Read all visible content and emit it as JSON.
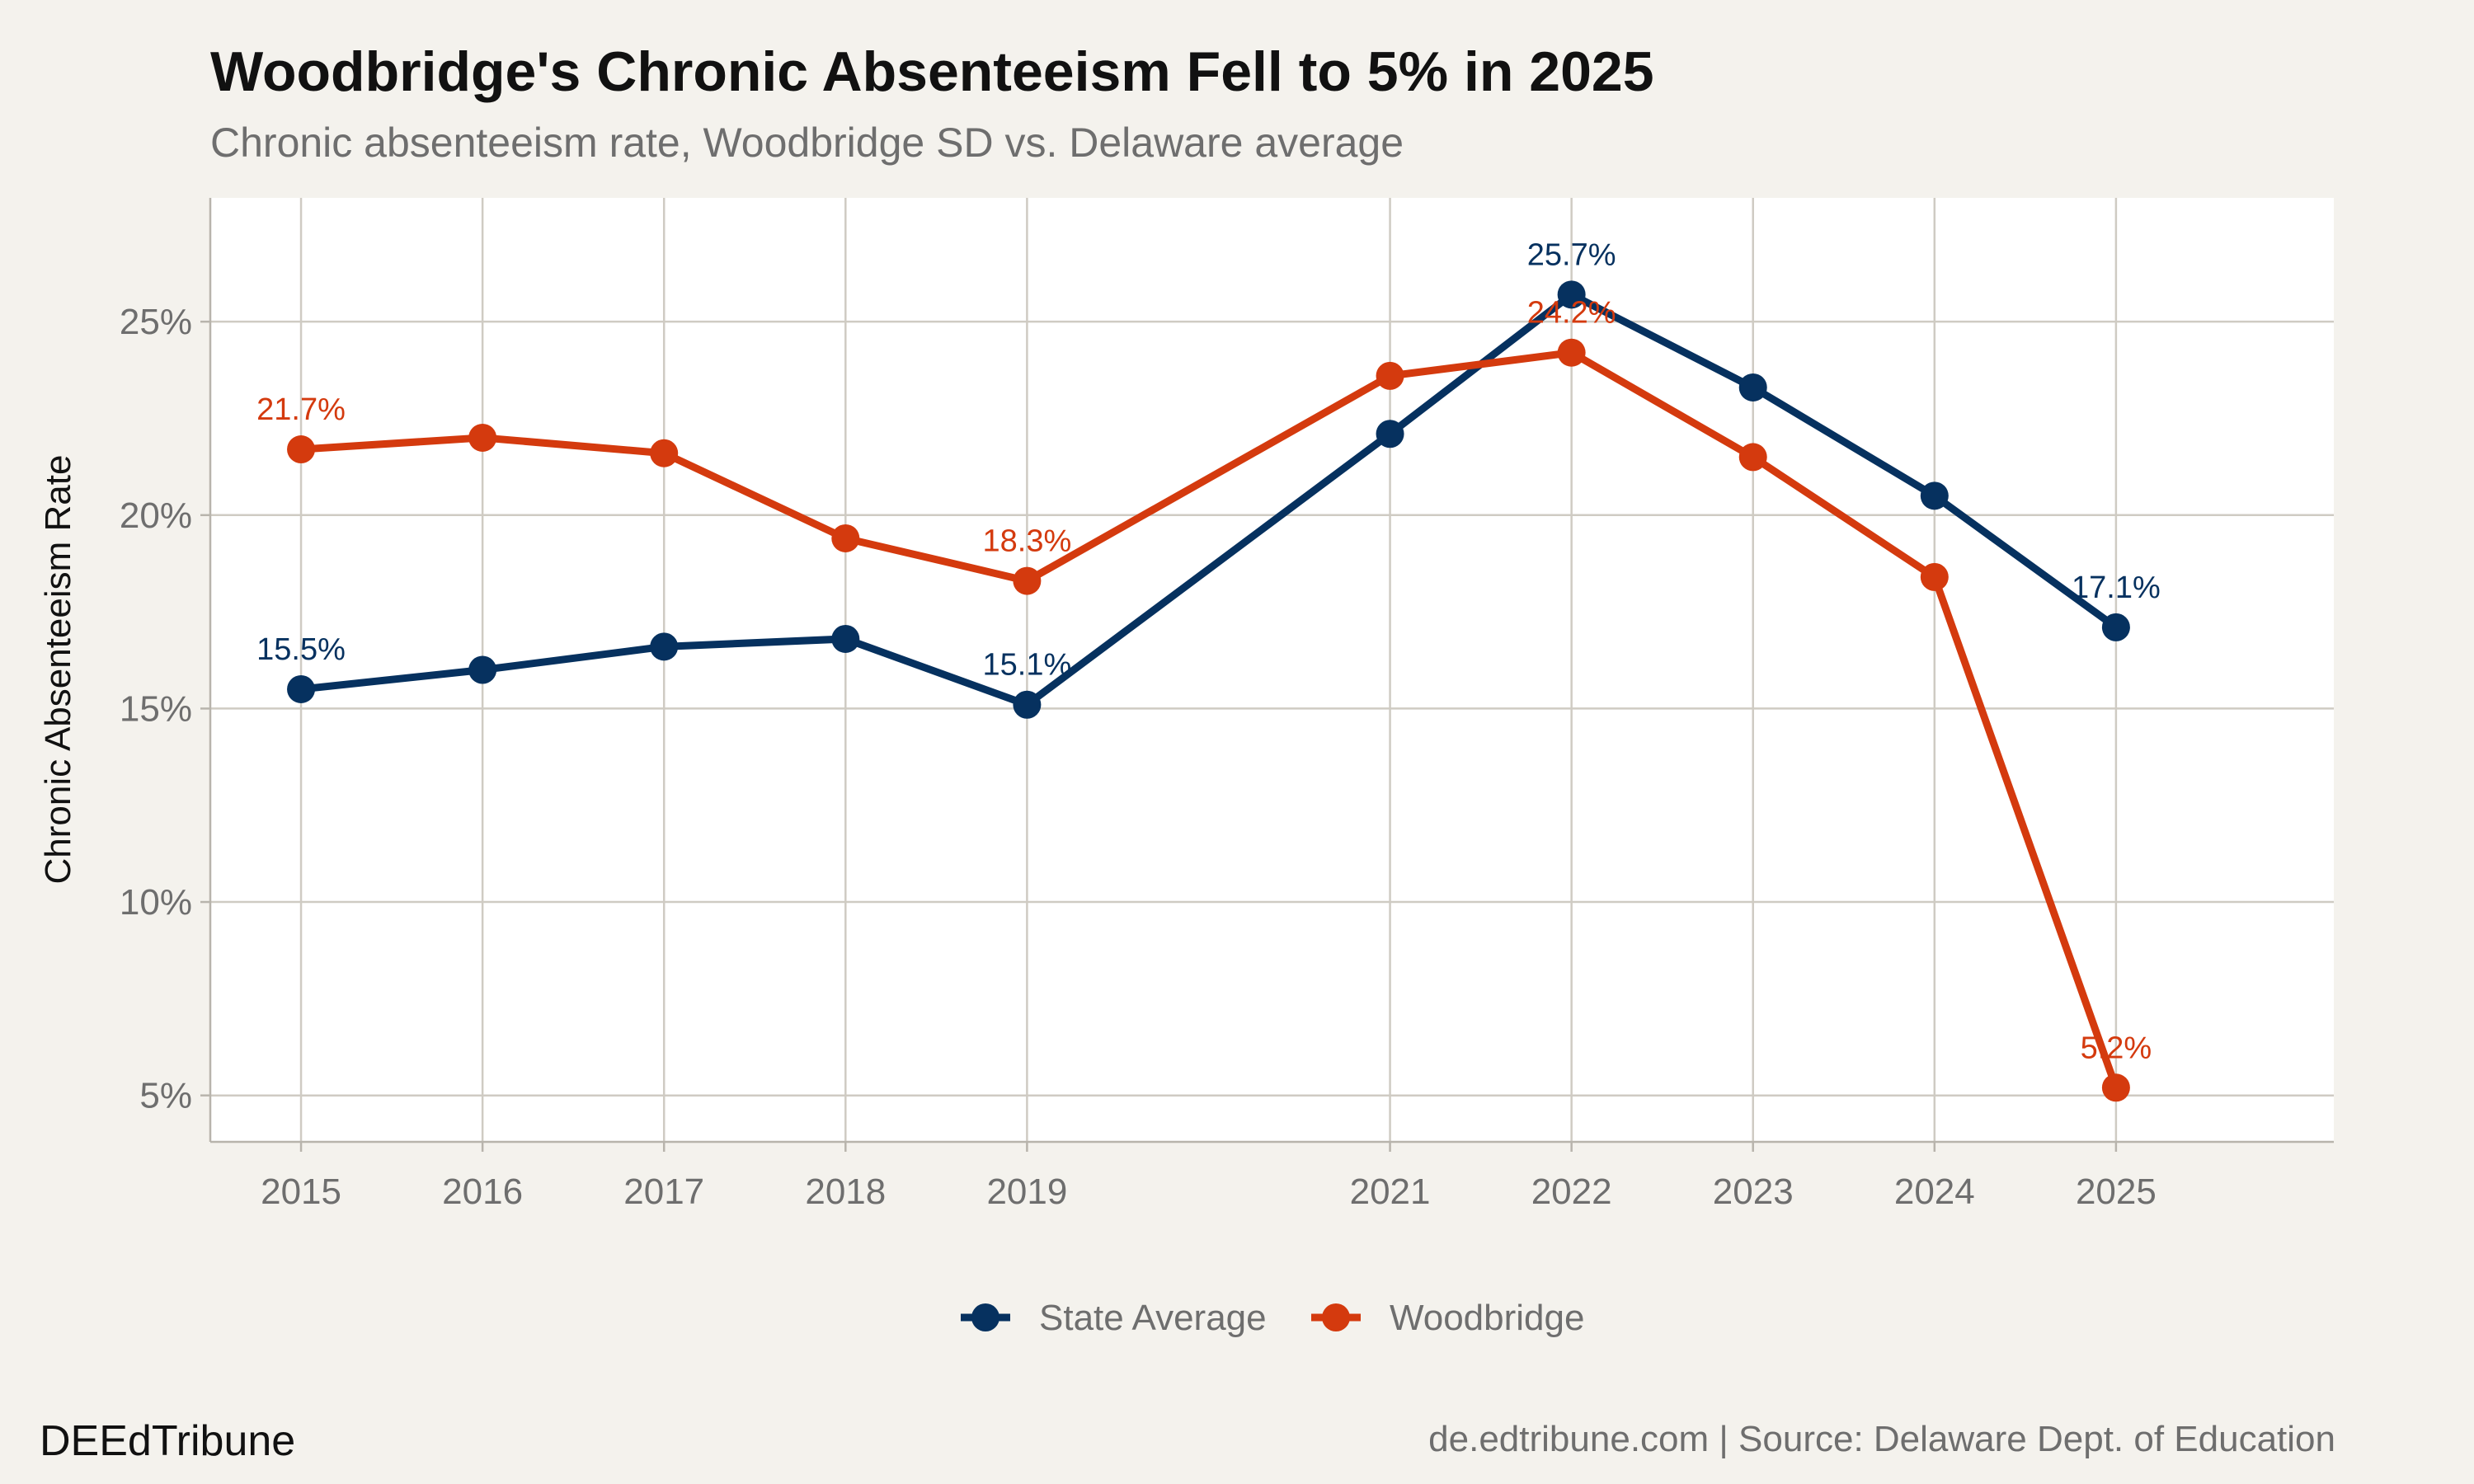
{
  "chart_data": {
    "type": "line",
    "title": "Woodbridge's Chronic Absenteeism Fell to 5% in 2025",
    "subtitle": "Chronic absenteeism rate, Woodbridge SD vs. Delaware average",
    "xlabel": "",
    "ylabel": "Chronic Absenteeism Rate",
    "x": [
      2015,
      2016,
      2017,
      2018,
      2019,
      2021,
      2022,
      2023,
      2024,
      2025
    ],
    "x_tick_labels": [
      "2015",
      "2016",
      "2017",
      "2018",
      "2019",
      "2021",
      "2022",
      "2023",
      "2024",
      "2025"
    ],
    "xlim": [
      2014.5,
      2026.2
    ],
    "ylim": [
      3.8,
      28.2
    ],
    "y_ticks": [
      5,
      10,
      15,
      20,
      25
    ],
    "y_tick_labels": [
      "5%",
      "10%",
      "15%",
      "20%",
      "25%"
    ],
    "grid": true,
    "legend_position": "bottom",
    "series": [
      {
        "name": "State Average",
        "color": "#06315f",
        "values": [
          15.5,
          16.0,
          16.6,
          16.8,
          15.1,
          22.1,
          25.7,
          23.3,
          20.5,
          17.1
        ],
        "point_labels": [
          "15.5%",
          "",
          "",
          "",
          "15.1%",
          "",
          "25.7%",
          "",
          "",
          "17.1%"
        ]
      },
      {
        "name": "Woodbridge",
        "color": "#d43a0e",
        "values": [
          21.7,
          22.0,
          21.6,
          19.4,
          18.3,
          23.6,
          24.2,
          21.5,
          18.4,
          5.2
        ],
        "point_labels": [
          "21.7%",
          "",
          "",
          "",
          "18.3%",
          "",
          "24.2%",
          "",
          "",
          "5.2%"
        ]
      }
    ]
  },
  "footer": {
    "brand": "DEEdTribune",
    "source": "de.edtribune.com | Source: Delaware Dept. of Education"
  }
}
